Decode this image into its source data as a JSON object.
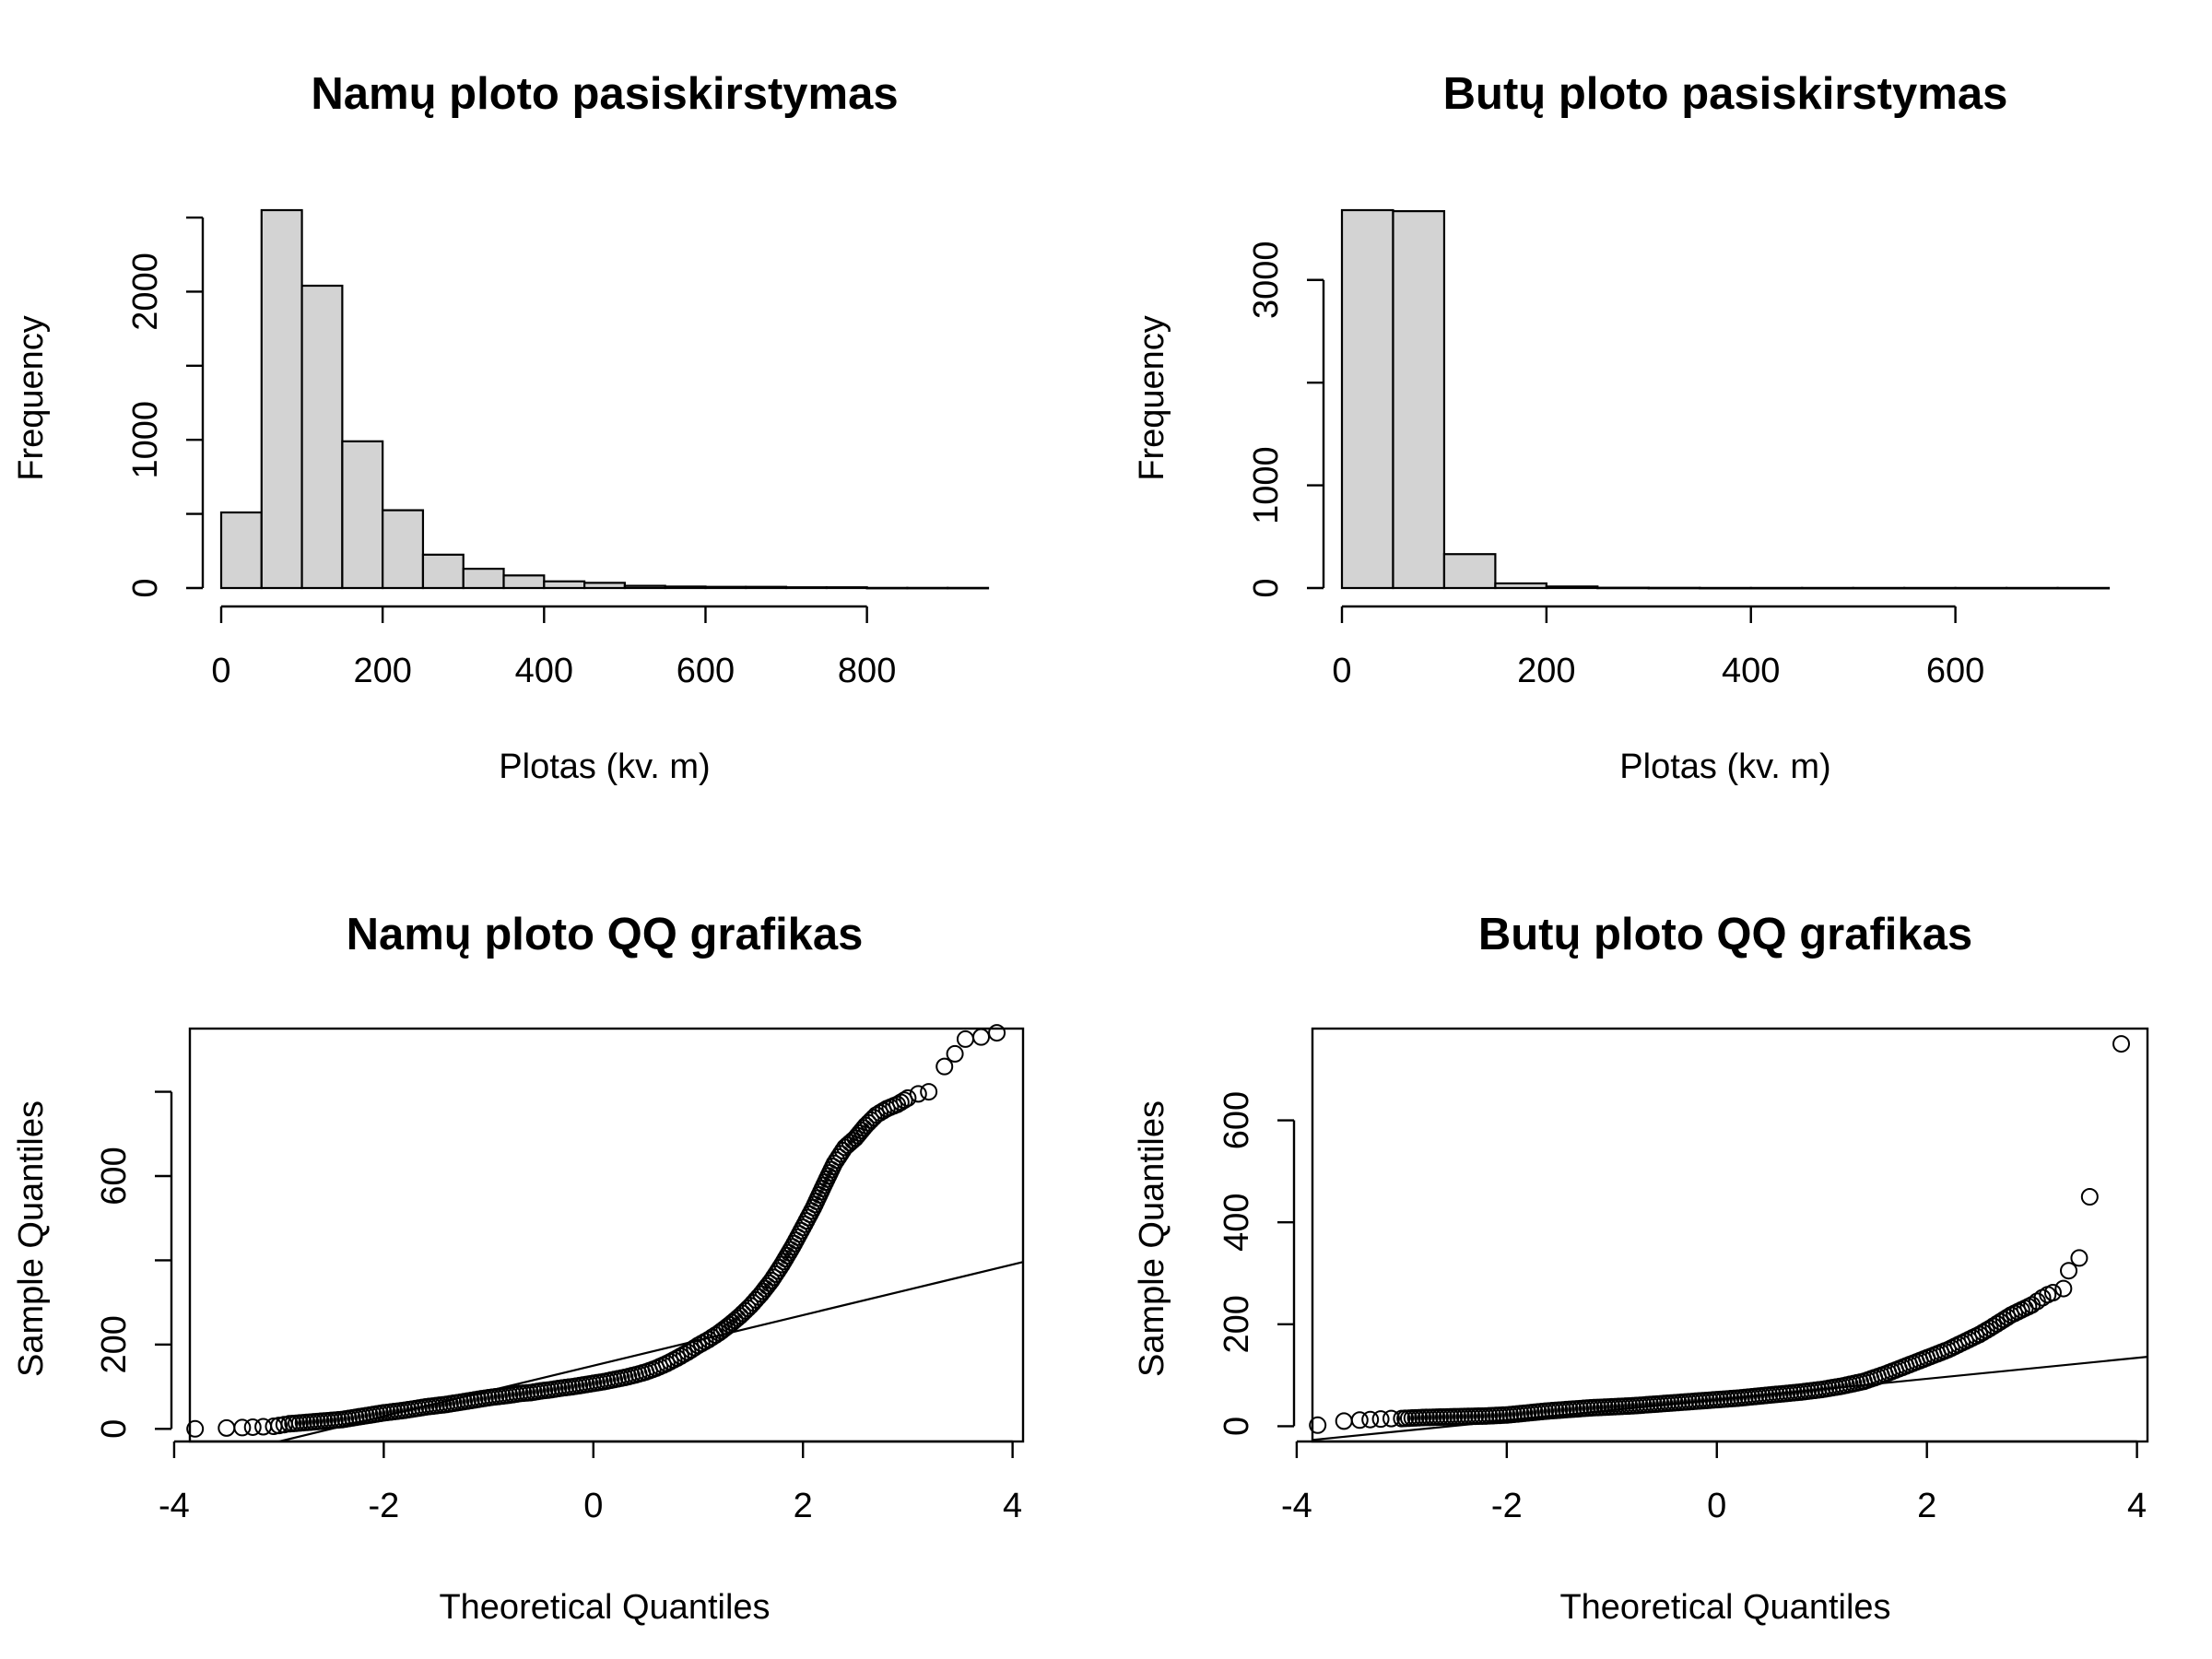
{
  "chart_data": [
    {
      "type": "bar",
      "title": "Namų ploto pasiskirstymas",
      "xlabel": "Plotas (kv. m)",
      "ylabel": "Frequency",
      "bin_width": 50,
      "bins": [
        [
          0,
          50
        ],
        [
          50,
          100
        ],
        [
          100,
          150
        ],
        [
          150,
          200
        ],
        [
          200,
          250
        ],
        [
          250,
          300
        ],
        [
          300,
          350
        ],
        [
          350,
          400
        ],
        [
          400,
          450
        ],
        [
          450,
          500
        ],
        [
          500,
          550
        ],
        [
          550,
          600
        ],
        [
          600,
          650
        ],
        [
          650,
          700
        ],
        [
          700,
          750
        ],
        [
          750,
          800
        ],
        [
          800,
          850
        ],
        [
          850,
          900
        ],
        [
          900,
          950
        ]
      ],
      "values": [
        510,
        2550,
        2040,
        990,
        525,
        225,
        130,
        85,
        45,
        35,
        15,
        10,
        8,
        8,
        5,
        5,
        1,
        1,
        1
      ],
      "xlim": [
        0,
        950
      ],
      "ylim": [
        0,
        2550
      ],
      "x_ticks": [
        0,
        200,
        400,
        600,
        800
      ],
      "x_tick_labels": [
        "0",
        "200",
        "400",
        "600",
        "800"
      ],
      "y_ticks": [
        0,
        500,
        1000,
        1500,
        2000,
        2500
      ],
      "y_tick_labels": [
        "0",
        "",
        "1000",
        "",
        "2000",
        ""
      ],
      "grid": false,
      "box": false
    },
    {
      "type": "bar",
      "title": "Butų ploto pasiskirstymas",
      "xlabel": "Plotas (kv. m)",
      "ylabel": "Frequency",
      "bin_width": 50,
      "bins": [
        [
          0,
          50
        ],
        [
          50,
          100
        ],
        [
          100,
          150
        ],
        [
          150,
          200
        ],
        [
          200,
          250
        ],
        [
          250,
          300
        ],
        [
          300,
          350
        ],
        [
          350,
          400
        ],
        [
          400,
          450
        ],
        [
          450,
          500
        ],
        [
          500,
          550
        ],
        [
          550,
          600
        ],
        [
          600,
          650
        ],
        [
          650,
          700
        ],
        [
          700,
          750
        ]
      ],
      "values": [
        3680,
        3670,
        330,
        45,
        15,
        3,
        2,
        1,
        1,
        1,
        1,
        1,
        1,
        1,
        1
      ],
      "xlim": [
        0,
        750
      ],
      "ylim": [
        0,
        3680
      ],
      "x_ticks": [
        0,
        200,
        400,
        600
      ],
      "x_tick_labels": [
        "0",
        "200",
        "400",
        "600"
      ],
      "y_ticks": [
        0,
        1000,
        2000,
        3000
      ],
      "y_tick_labels": [
        "0",
        "1000",
        "",
        "3000"
      ],
      "grid": false,
      "box": false
    },
    {
      "type": "scatter",
      "title": "Namų ploto QQ grafikas",
      "xlabel": "Theoretical Quantiles",
      "ylabel": "Sample Quantiles",
      "points": [
        [
          -3.8,
          0
        ],
        [
          -3.5,
          2
        ],
        [
          -3.35,
          3
        ],
        [
          -3.25,
          4
        ],
        [
          -3.15,
          5
        ],
        [
          -3.05,
          6
        ],
        [
          -3.0,
          8
        ],
        [
          -2.95,
          10
        ],
        [
          -2.9,
          12
        ],
        [
          -2.8,
          14
        ],
        [
          -2.7,
          16
        ],
        [
          -2.6,
          18
        ],
        [
          -2.5,
          20
        ],
        [
          -2.4,
          22
        ],
        [
          -2.3,
          26
        ],
        [
          -2.2,
          30
        ],
        [
          -2.1,
          34
        ],
        [
          -2.0,
          38
        ],
        [
          -1.9,
          41
        ],
        [
          -1.8,
          44
        ],
        [
          -1.7,
          48
        ],
        [
          -1.6,
          52
        ],
        [
          -1.5,
          55
        ],
        [
          -1.4,
          58
        ],
        [
          -1.3,
          62
        ],
        [
          -1.2,
          66
        ],
        [
          -1.1,
          70
        ],
        [
          -1.0,
          74
        ],
        [
          -0.9,
          77
        ],
        [
          -0.8,
          80
        ],
        [
          -0.7,
          84
        ],
        [
          -0.6,
          86
        ],
        [
          -0.5,
          90
        ],
        [
          -0.4,
          93
        ],
        [
          -0.3,
          97
        ],
        [
          -0.2,
          100
        ],
        [
          -0.1,
          104
        ],
        [
          0.0,
          108
        ],
        [
          0.1,
          112
        ],
        [
          0.2,
          117
        ],
        [
          0.3,
          122
        ],
        [
          0.4,
          128
        ],
        [
          0.5,
          135
        ],
        [
          0.6,
          144
        ],
        [
          0.7,
          155
        ],
        [
          0.8,
          168
        ],
        [
          0.9,
          182
        ],
        [
          1.0,
          198
        ],
        [
          1.1,
          212
        ],
        [
          1.2,
          228
        ],
        [
          1.3,
          247
        ],
        [
          1.4,
          268
        ],
        [
          1.5,
          292
        ],
        [
          1.6,
          320
        ],
        [
          1.7,
          352
        ],
        [
          1.8,
          390
        ],
        [
          1.9,
          432
        ],
        [
          2.0,
          478
        ],
        [
          2.1,
          525
        ],
        [
          2.2,
          578
        ],
        [
          2.3,
          630
        ],
        [
          2.4,
          668
        ],
        [
          2.5,
          690
        ],
        [
          2.6,
          720
        ],
        [
          2.7,
          745
        ],
        [
          2.8,
          760
        ],
        [
          2.9,
          770
        ],
        [
          3.0,
          785
        ],
        [
          3.1,
          795
        ],
        [
          3.2,
          800
        ],
        [
          3.35,
          860
        ],
        [
          3.45,
          890
        ],
        [
          3.55,
          925
        ],
        [
          3.7,
          930
        ],
        [
          3.85,
          940
        ]
      ],
      "reference_line": {
        "intercept": 150,
        "slope": 60
      },
      "xlim": [
        -3.85,
        4.1
      ],
      "ylim": [
        -30,
        950
      ],
      "x_ticks": [
        -4,
        -2,
        0,
        2,
        4
      ],
      "x_tick_labels": [
        "-4",
        "-2",
        "0",
        "2",
        "4"
      ],
      "y_ticks": [
        0,
        200,
        400,
        600,
        800
      ],
      "y_tick_labels": [
        "0",
        "200",
        "",
        "600",
        ""
      ],
      "grid": false,
      "box": true
    },
    {
      "type": "scatter",
      "title": "Butų ploto QQ grafikas",
      "xlabel": "Theoretical Quantiles",
      "ylabel": "Sample Quantiles",
      "points": [
        [
          -3.8,
          2
        ],
        [
          -3.55,
          10
        ],
        [
          -3.4,
          12
        ],
        [
          -3.3,
          13
        ],
        [
          -3.2,
          14
        ],
        [
          -3.1,
          15
        ],
        [
          -3.0,
          15
        ],
        [
          -2.9,
          16
        ],
        [
          -2.8,
          17
        ],
        [
          -2.6,
          18
        ],
        [
          -2.4,
          19
        ],
        [
          -2.2,
          20
        ],
        [
          -2.0,
          22
        ],
        [
          -1.8,
          26
        ],
        [
          -1.6,
          30
        ],
        [
          -1.4,
          33
        ],
        [
          -1.2,
          36
        ],
        [
          -1.0,
          38
        ],
        [
          -0.8,
          40
        ],
        [
          -0.6,
          43
        ],
        [
          -0.4,
          46
        ],
        [
          -0.2,
          49
        ],
        [
          0.0,
          52
        ],
        [
          0.2,
          55
        ],
        [
          0.4,
          59
        ],
        [
          0.6,
          63
        ],
        [
          0.8,
          67
        ],
        [
          1.0,
          72
        ],
        [
          1.2,
          79
        ],
        [
          1.4,
          88
        ],
        [
          1.5,
          95
        ],
        [
          1.6,
          102
        ],
        [
          1.7,
          110
        ],
        [
          1.8,
          118
        ],
        [
          1.9,
          126
        ],
        [
          2.0,
          134
        ],
        [
          2.1,
          142
        ],
        [
          2.2,
          150
        ],
        [
          2.3,
          160
        ],
        [
          2.4,
          170
        ],
        [
          2.5,
          180
        ],
        [
          2.6,
          192
        ],
        [
          2.7,
          205
        ],
        [
          2.8,
          218
        ],
        [
          2.9,
          228
        ],
        [
          3.0,
          238
        ],
        [
          3.05,
          245
        ],
        [
          3.1,
          252
        ],
        [
          3.15,
          258
        ],
        [
          3.2,
          262
        ],
        [
          3.3,
          270
        ],
        [
          3.35,
          305
        ],
        [
          3.45,
          330
        ],
        [
          3.55,
          450
        ],
        [
          3.85,
          750
        ]
      ],
      "reference_line": {
        "intercept": 52,
        "slope": 20.5
      },
      "xlim": [
        -3.85,
        4.1
      ],
      "ylim": [
        -30,
        780
      ],
      "x_ticks": [
        -4,
        -2,
        0,
        2,
        4
      ],
      "x_tick_labels": [
        "-4",
        "-2",
        "0",
        "2",
        "4"
      ],
      "y_ticks": [
        0,
        200,
        400,
        600
      ],
      "y_tick_labels": [
        "0",
        "200",
        "400",
        "600"
      ],
      "grid": false,
      "box": true
    }
  ]
}
